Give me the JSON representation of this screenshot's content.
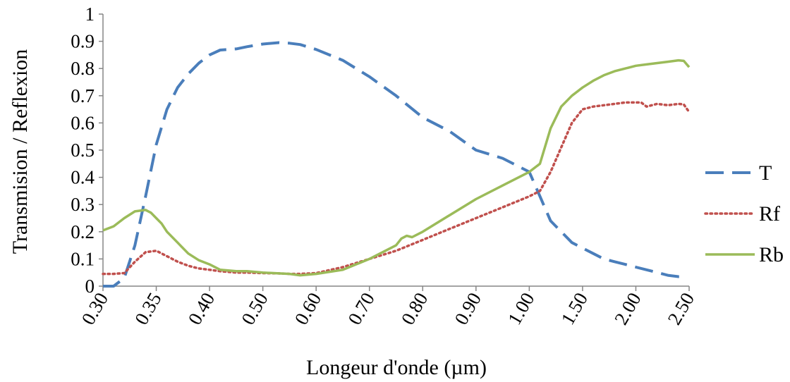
{
  "chart_data": {
    "type": "line",
    "xlabel": "Longeur d'onde (µm)",
    "ylabel": "Transmision / Reflexion",
    "ylim": [
      0,
      1
    ],
    "y_ticks": [
      "0",
      "0.1",
      "0.2",
      "0.3",
      "0.4",
      "0.5",
      "0.6",
      "0.7",
      "0.8",
      "0.9",
      "1"
    ],
    "x_categories": [
      "0.30",
      "0.35",
      "0.40",
      "0.50",
      "0.60",
      "0.70",
      "0.80",
      "0.90",
      "1.00",
      "1.50",
      "2.00",
      "2.50"
    ],
    "x_scale": "piecewise-categorical",
    "grid": false,
    "legend_position": "right",
    "series": [
      {
        "name": "T",
        "color": "#4a7ebb",
        "style": "dashed",
        "x": [
          0.3,
          0.31,
          0.32,
          0.33,
          0.34,
          0.35,
          0.36,
          0.37,
          0.38,
          0.39,
          0.4,
          0.42,
          0.45,
          0.47,
          0.5,
          0.53,
          0.55,
          0.57,
          0.6,
          0.65,
          0.7,
          0.75,
          0.8,
          0.85,
          0.9,
          0.95,
          1.0,
          1.1,
          1.2,
          1.3,
          1.4,
          1.5,
          1.6,
          1.7,
          1.8,
          1.9,
          2.0,
          2.1,
          2.2,
          2.3,
          2.4,
          2.45
        ],
        "values": [
          0.0,
          0.0,
          0.03,
          0.15,
          0.33,
          0.52,
          0.65,
          0.73,
          0.78,
          0.82,
          0.85,
          0.868,
          0.872,
          0.88,
          0.89,
          0.895,
          0.893,
          0.888,
          0.87,
          0.83,
          0.77,
          0.7,
          0.62,
          0.57,
          0.5,
          0.47,
          0.42,
          0.33,
          0.24,
          0.2,
          0.16,
          0.14,
          0.12,
          0.1,
          0.09,
          0.08,
          0.07,
          0.06,
          0.05,
          0.04,
          0.035,
          0.035
        ]
      },
      {
        "name": "Rf",
        "color": "#c0504d",
        "style": "dotted",
        "x": [
          0.3,
          0.31,
          0.32,
          0.33,
          0.34,
          0.35,
          0.36,
          0.37,
          0.38,
          0.39,
          0.4,
          0.42,
          0.45,
          0.47,
          0.5,
          0.53,
          0.55,
          0.57,
          0.6,
          0.65,
          0.7,
          0.75,
          0.8,
          0.85,
          0.9,
          0.95,
          1.0,
          1.1,
          1.2,
          1.3,
          1.4,
          1.5,
          1.6,
          1.7,
          1.8,
          1.9,
          2.0,
          2.05,
          2.1,
          2.15,
          2.2,
          2.3,
          2.4,
          2.45,
          2.5
        ],
        "values": [
          0.045,
          0.045,
          0.048,
          0.09,
          0.125,
          0.13,
          0.11,
          0.09,
          0.075,
          0.065,
          0.06,
          0.055,
          0.05,
          0.05,
          0.048,
          0.047,
          0.045,
          0.045,
          0.048,
          0.07,
          0.1,
          0.13,
          0.17,
          0.21,
          0.25,
          0.29,
          0.33,
          0.35,
          0.42,
          0.51,
          0.6,
          0.65,
          0.66,
          0.665,
          0.67,
          0.675,
          0.675,
          0.675,
          0.66,
          0.665,
          0.67,
          0.665,
          0.67,
          0.668,
          0.64
        ]
      },
      {
        "name": "Rb",
        "color": "#9bbb59",
        "style": "solid",
        "x": [
          0.3,
          0.31,
          0.32,
          0.33,
          0.34,
          0.345,
          0.35,
          0.355,
          0.36,
          0.37,
          0.38,
          0.39,
          0.4,
          0.42,
          0.45,
          0.47,
          0.5,
          0.53,
          0.55,
          0.57,
          0.6,
          0.65,
          0.7,
          0.72,
          0.75,
          0.76,
          0.77,
          0.78,
          0.8,
          0.85,
          0.9,
          0.95,
          1.0,
          1.1,
          1.2,
          1.3,
          1.4,
          1.5,
          1.6,
          1.7,
          1.8,
          1.9,
          2.0,
          2.1,
          2.2,
          2.3,
          2.4,
          2.45,
          2.5
        ],
        "values": [
          0.205,
          0.22,
          0.25,
          0.275,
          0.28,
          0.27,
          0.25,
          0.23,
          0.2,
          0.16,
          0.12,
          0.095,
          0.08,
          0.06,
          0.055,
          0.055,
          0.05,
          0.047,
          0.045,
          0.04,
          0.045,
          0.06,
          0.1,
          0.12,
          0.15,
          0.175,
          0.185,
          0.18,
          0.2,
          0.26,
          0.32,
          0.37,
          0.42,
          0.45,
          0.58,
          0.66,
          0.7,
          0.73,
          0.755,
          0.775,
          0.79,
          0.8,
          0.81,
          0.815,
          0.82,
          0.825,
          0.83,
          0.828,
          0.805
        ]
      }
    ]
  }
}
